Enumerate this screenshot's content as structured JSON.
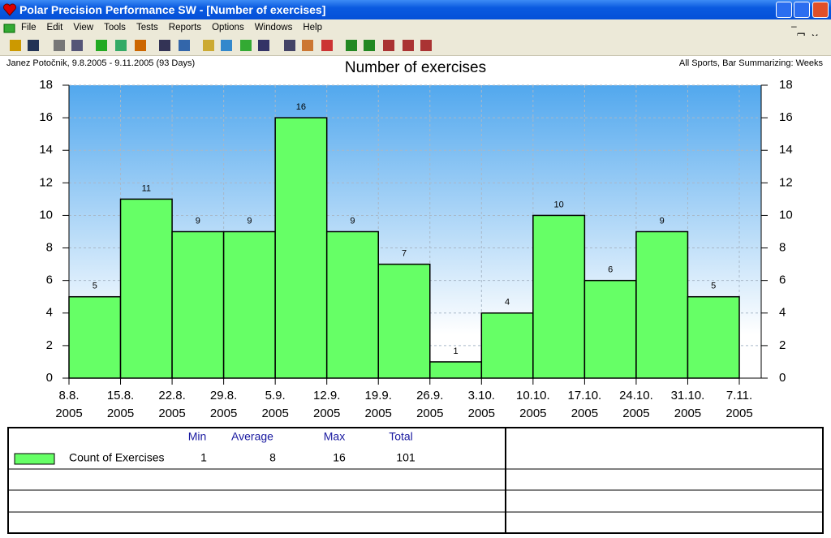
{
  "window": {
    "title": "Polar Precision Performance SW - [Number of exercises]"
  },
  "menu": [
    "File",
    "Edit",
    "View",
    "Tools",
    "Tests",
    "Reports",
    "Options",
    "Windows",
    "Help"
  ],
  "info": {
    "left": "Janez Potočnik, 9.8.2005 - 9.11.2005 (93 Days)",
    "right": "All Sports, Bar Summarizing: Weeks"
  },
  "chart_data": {
    "type": "bar",
    "title": "Number of exercises",
    "xticks": [
      [
        "8.8.",
        "2005"
      ],
      [
        "15.8.",
        "2005"
      ],
      [
        "22.8.",
        "2005"
      ],
      [
        "29.8.",
        "2005"
      ],
      [
        "5.9.",
        "2005"
      ],
      [
        "12.9.",
        "2005"
      ],
      [
        "19.9.",
        "2005"
      ],
      [
        "26.9.",
        "2005"
      ],
      [
        "3.10.",
        "2005"
      ],
      [
        "10.10.",
        "2005"
      ],
      [
        "17.10.",
        "2005"
      ],
      [
        "24.10.",
        "2005"
      ],
      [
        "31.10.",
        "2005"
      ],
      [
        "7.11.",
        "2005"
      ]
    ],
    "values": [
      5,
      11,
      9,
      9,
      16,
      9,
      7,
      1,
      4,
      10,
      6,
      9,
      5
    ],
    "color": "#66ff66",
    "ylim": [
      0,
      18
    ],
    "yticks": [
      0,
      2,
      4,
      6,
      8,
      10,
      12,
      14,
      16,
      18
    ],
    "grid": true
  },
  "summary": {
    "headers": [
      "Min",
      "Average",
      "Max",
      "Total"
    ],
    "rows": [
      {
        "name": "Count of Exercises",
        "values": [
          "1",
          "8",
          "16",
          "101"
        ]
      }
    ]
  }
}
